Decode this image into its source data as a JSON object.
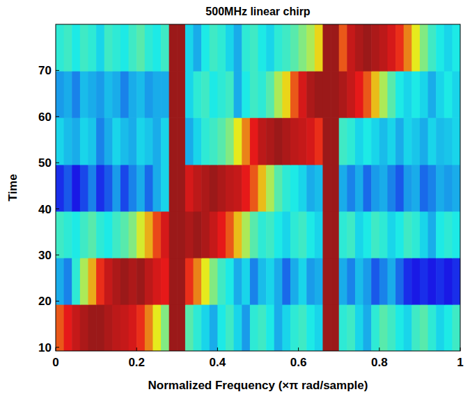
{
  "chart_data": {
    "type": "heatmap",
    "title": "500MHz linear chirp",
    "x_label": "Normalized Frequency  (×π rad/sample)",
    "y_label": "Time",
    "xlim": [
      0,
      1
    ],
    "xticks": [
      0,
      0.2,
      0.4,
      0.6,
      0.8,
      1
    ],
    "ylim": [
      9.2,
      80
    ],
    "yticks": [
      10,
      20,
      30,
      40,
      50,
      60,
      70
    ],
    "y_edges": [
      9.2,
      19.3,
      29.4,
      39.5,
      49.6,
      59.8,
      69.9,
      80
    ],
    "color_range": [
      0,
      1
    ],
    "cells": [
      [
        0.8,
        0.88,
        0.92,
        0.95,
        0.97,
        0.97,
        0.95,
        0.93,
        0.92,
        0.9,
        0.85,
        0.75,
        0.62,
        0.5,
        0.97,
        0.97,
        0.45,
        0.4,
        0.35,
        0.3,
        0.38,
        0.42,
        0.35,
        0.28,
        0.4,
        0.42,
        0.38,
        0.3,
        0.35,
        0.4,
        0.42,
        0.38,
        0.35,
        0.97,
        0.97,
        0.4,
        0.42,
        0.35,
        0.3,
        0.4,
        0.45,
        0.42,
        0.38,
        0.35,
        0.42,
        0.45,
        0.4,
        0.35,
        0.38,
        0.42
      ],
      [
        0.3,
        0.25,
        0.4,
        0.55,
        0.7,
        0.85,
        0.92,
        0.95,
        0.97,
        0.95,
        0.97,
        0.93,
        0.9,
        0.88,
        0.97,
        0.97,
        0.85,
        0.75,
        0.62,
        0.5,
        0.42,
        0.38,
        0.3,
        0.35,
        0.25,
        0.32,
        0.35,
        0.3,
        0.22,
        0.3,
        0.35,
        0.28,
        0.3,
        0.97,
        0.97,
        0.3,
        0.25,
        0.32,
        0.28,
        0.2,
        0.25,
        0.3,
        0.22,
        0.15,
        0.12,
        0.15,
        0.12,
        0.15,
        0.12,
        0.15
      ],
      [
        0.42,
        0.4,
        0.38,
        0.42,
        0.45,
        0.4,
        0.38,
        0.42,
        0.45,
        0.5,
        0.6,
        0.7,
        0.82,
        0.9,
        0.97,
        0.97,
        0.95,
        0.97,
        0.95,
        0.92,
        0.88,
        0.8,
        0.68,
        0.55,
        0.45,
        0.4,
        0.42,
        0.38,
        0.35,
        0.4,
        0.42,
        0.38,
        0.35,
        0.97,
        0.97,
        0.4,
        0.42,
        0.35,
        0.38,
        0.42,
        0.4,
        0.35,
        0.38,
        0.42,
        0.4,
        0.35,
        0.3,
        0.38,
        0.4,
        0.38
      ],
      [
        0.15,
        0.2,
        0.12,
        0.18,
        0.25,
        0.15,
        0.2,
        0.28,
        0.18,
        0.25,
        0.3,
        0.22,
        0.3,
        0.35,
        0.97,
        0.97,
        0.9,
        0.93,
        0.95,
        0.97,
        0.95,
        0.93,
        0.92,
        0.88,
        0.8,
        0.68,
        0.55,
        0.45,
        0.4,
        0.38,
        0.35,
        0.3,
        0.32,
        0.97,
        0.97,
        0.3,
        0.25,
        0.3,
        0.22,
        0.28,
        0.3,
        0.25,
        0.2,
        0.28,
        0.3,
        0.22,
        0.25,
        0.3,
        0.28,
        0.3
      ],
      [
        0.35,
        0.32,
        0.3,
        0.35,
        0.33,
        0.25,
        0.3,
        0.35,
        0.32,
        0.3,
        0.35,
        0.33,
        0.3,
        0.35,
        0.97,
        0.97,
        0.3,
        0.35,
        0.4,
        0.42,
        0.45,
        0.5,
        0.62,
        0.75,
        0.88,
        0.93,
        0.95,
        0.97,
        0.95,
        0.93,
        0.92,
        0.9,
        0.85,
        0.97,
        0.97,
        0.42,
        0.4,
        0.35,
        0.38,
        0.35,
        0.32,
        0.35,
        0.3,
        0.35,
        0.33,
        0.3,
        0.35,
        0.32,
        0.33,
        0.35
      ],
      [
        0.28,
        0.3,
        0.25,
        0.32,
        0.3,
        0.28,
        0.32,
        0.3,
        0.25,
        0.3,
        0.32,
        0.28,
        0.3,
        0.3,
        0.97,
        0.97,
        0.35,
        0.4,
        0.42,
        0.38,
        0.4,
        0.42,
        0.3,
        0.38,
        0.42,
        0.4,
        0.45,
        0.55,
        0.65,
        0.8,
        0.9,
        0.95,
        0.97,
        0.97,
        0.97,
        0.95,
        0.92,
        0.88,
        0.8,
        0.68,
        0.55,
        0.45,
        0.38,
        0.35,
        0.38,
        0.35,
        0.3,
        0.35,
        0.38,
        0.35
      ],
      [
        0.4,
        0.42,
        0.38,
        0.42,
        0.4,
        0.35,
        0.42,
        0.4,
        0.38,
        0.42,
        0.45,
        0.4,
        0.38,
        0.42,
        0.97,
        0.97,
        0.35,
        0.3,
        0.38,
        0.42,
        0.4,
        0.35,
        0.3,
        0.4,
        0.42,
        0.38,
        0.35,
        0.4,
        0.42,
        0.45,
        0.5,
        0.55,
        0.65,
        0.97,
        0.97,
        0.8,
        0.92,
        0.95,
        0.97,
        0.95,
        0.93,
        0.9,
        0.85,
        0.75,
        0.62,
        0.5,
        0.42,
        0.38,
        0.35,
        0.38
      ]
    ]
  }
}
